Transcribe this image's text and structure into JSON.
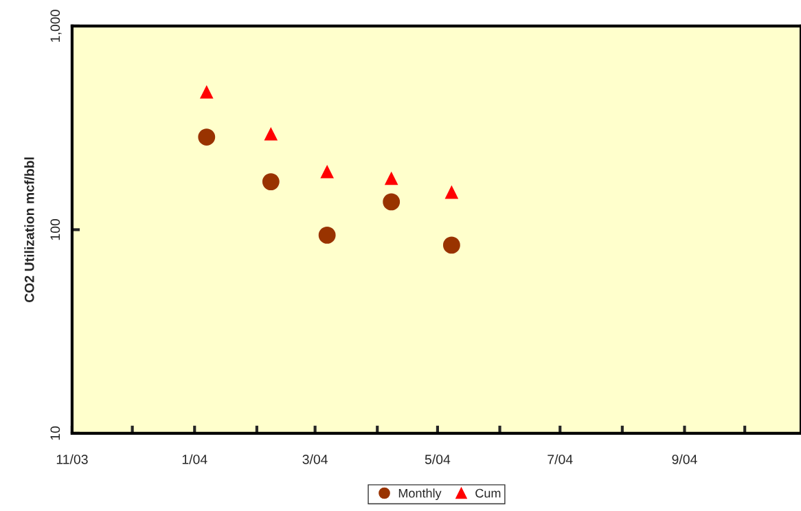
{
  "chart_data": {
    "type": "scatter",
    "ylabel": "CO2 Utilization mcf/bbl",
    "x": [
      "2004-01-07",
      "2004-02-08",
      "2004-03-07",
      "2004-04-08",
      "2004-05-08"
    ],
    "series": [
      {
        "name": "Monthly",
        "color": "#993300",
        "marker": "circle",
        "values": [
          285,
          172,
          94,
          137,
          84
        ]
      },
      {
        "name": "Cum",
        "color": "#ff0000",
        "marker": "triangle",
        "values": [
          475,
          296,
          193,
          179,
          153
        ]
      }
    ],
    "log": "y",
    "ylim": [
      10,
      1000
    ],
    "yticks": [
      10,
      100,
      {
        "value": 1000,
        "label": "1,000"
      }
    ],
    "xlim": [
      "2003-11-01",
      "2004-10-29"
    ],
    "xticks": [
      {
        "value": "2003-11-01",
        "label": "11/03"
      },
      {
        "value": "2003-12-01",
        "label": null
      },
      {
        "value": "2004-01-01",
        "label": "1/04"
      },
      {
        "value": "2004-02-01",
        "label": null
      },
      {
        "value": "2004-03-01",
        "label": "3/04"
      },
      {
        "value": "2004-04-01",
        "label": null
      },
      {
        "value": "2004-05-01",
        "label": "5/04"
      },
      {
        "value": "2004-06-01",
        "label": null
      },
      {
        "value": "2004-07-01",
        "label": "7/04"
      },
      {
        "value": "2004-08-01",
        "label": null
      },
      {
        "value": "2004-09-01",
        "label": "9/04"
      },
      {
        "value": "2004-10-01",
        "label": null
      }
    ],
    "grid": false,
    "legend": "bottom"
  }
}
